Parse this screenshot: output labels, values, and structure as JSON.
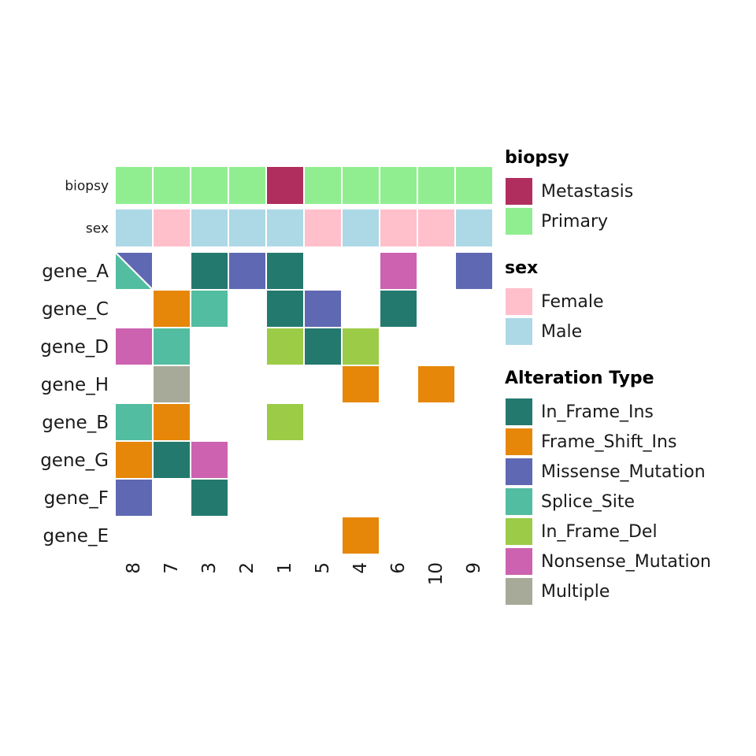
{
  "chart_data": {
    "type": "heatmap",
    "samples": [
      "8",
      "7",
      "3",
      "2",
      "1",
      "5",
      "4",
      "6",
      "10",
      "9"
    ],
    "genes": [
      "gene_A",
      "gene_C",
      "gene_D",
      "gene_H",
      "gene_B",
      "gene_G",
      "gene_F",
      "gene_E"
    ],
    "annotations": [
      {
        "name": "biopsy",
        "values": [
          "Primary",
          "Primary",
          "Primary",
          "Primary",
          "Metastasis",
          "Primary",
          "Primary",
          "Primary",
          "Primary",
          "Primary"
        ]
      },
      {
        "name": "sex",
        "values": [
          "Male",
          "Female",
          "Male",
          "Male",
          "Male",
          "Female",
          "Male",
          "Female",
          "Female",
          "Male"
        ]
      }
    ],
    "alterations": [
      [
        [
          "Missense_Mutation",
          "Splice_Site"
        ],
        [],
        [
          "In_Frame_Ins"
        ],
        [
          "Missense_Mutation"
        ],
        [
          "In_Frame_Ins"
        ],
        [],
        [],
        [
          "Nonsense_Mutation"
        ],
        [],
        [
          "Missense_Mutation"
        ]
      ],
      [
        [],
        [
          "Frame_Shift_Ins"
        ],
        [
          "Splice_Site"
        ],
        [],
        [
          "In_Frame_Ins"
        ],
        [
          "Missense_Mutation"
        ],
        [],
        [
          "In_Frame_Ins"
        ],
        [],
        []
      ],
      [
        [
          "Nonsense_Mutation"
        ],
        [
          "Splice_Site"
        ],
        [],
        [],
        [
          "In_Frame_Del"
        ],
        [
          "In_Frame_Ins"
        ],
        [
          "In_Frame_Del"
        ],
        [],
        [],
        []
      ],
      [
        [],
        [
          "Multiple"
        ],
        [],
        [],
        [],
        [],
        [
          "Frame_Shift_Ins"
        ],
        [],
        [
          "Frame_Shift_Ins"
        ],
        []
      ],
      [
        [
          "Splice_Site"
        ],
        [
          "Frame_Shift_Ins"
        ],
        [],
        [],
        [
          "In_Frame_Del"
        ],
        [],
        [],
        [],
        [],
        []
      ],
      [
        [
          "Frame_Shift_Ins"
        ],
        [
          "In_Frame_Ins"
        ],
        [
          "Nonsense_Mutation"
        ],
        [],
        [],
        [],
        [],
        [],
        [],
        []
      ],
      [
        [
          "Missense_Mutation"
        ],
        [],
        [
          "In_Frame_Ins"
        ],
        [],
        [],
        [],
        [],
        [],
        [],
        []
      ],
      [
        [],
        [],
        [],
        [],
        [],
        [],
        [
          "Frame_Shift_Ins"
        ],
        [],
        [],
        []
      ]
    ]
  },
  "legends": [
    {
      "title": "biopsy",
      "items": [
        {
          "label": "Metastasis",
          "color": "#B02E5E"
        },
        {
          "label": "Primary",
          "color": "#90EE90"
        }
      ]
    },
    {
      "title": "sex",
      "items": [
        {
          "label": "Female",
          "color": "#FFC0CB"
        },
        {
          "label": "Male",
          "color": "#ADD8E6"
        }
      ]
    },
    {
      "title": "Alteration Type",
      "items": [
        {
          "label": "In_Frame_Ins",
          "color": "#24796E"
        },
        {
          "label": "Frame_Shift_Ins",
          "color": "#E6870A"
        },
        {
          "label": "Missense_Mutation",
          "color": "#5F68B2"
        },
        {
          "label": "Splice_Site",
          "color": "#52BDA0"
        },
        {
          "label": "In_Frame_Del",
          "color": "#9CCB47"
        },
        {
          "label": "Nonsense_Mutation",
          "color": "#CC62B0"
        },
        {
          "label": "Multiple",
          "color": "#A7AA98"
        }
      ]
    }
  ]
}
